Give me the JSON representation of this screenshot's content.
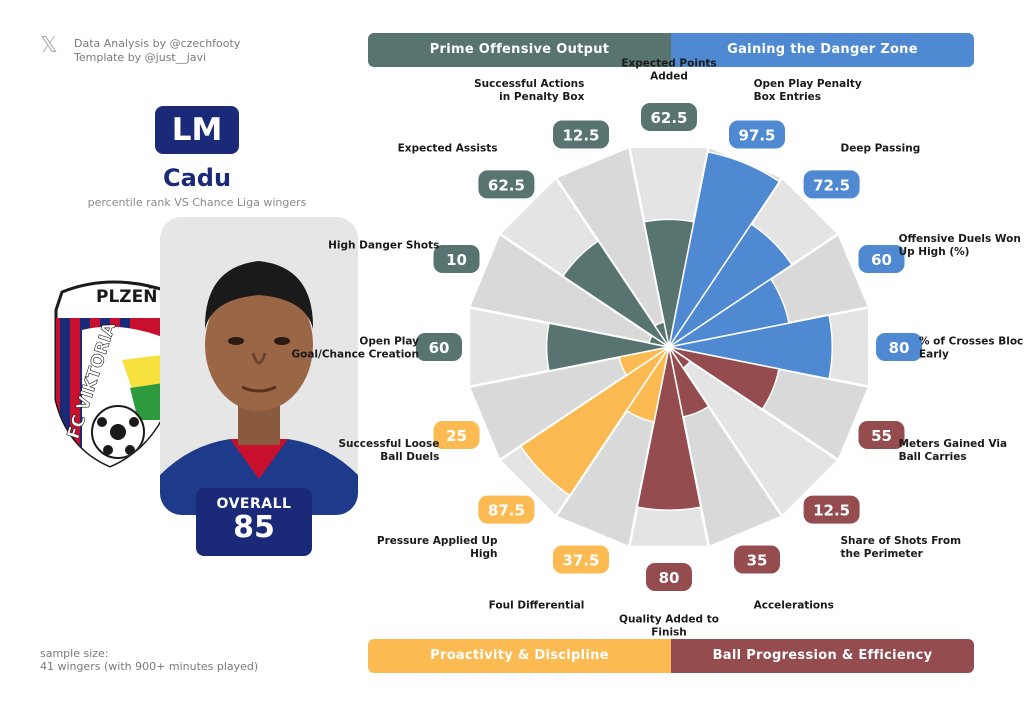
{
  "credits": {
    "line1": "Data Analysis by @czechfooty",
    "line2": "Template by @just__javi"
  },
  "player": {
    "position": "LM",
    "name": "Cadu",
    "subtitle": "percentile rank VS Chance Liga wingers",
    "overall_label": "OVERALL",
    "overall_value": "85"
  },
  "sample": {
    "line1": "sample size:",
    "line2": "41 wingers (with 900+ minutes played)"
  },
  "categories": {
    "top_left": "Prime Offensive Output",
    "top_right": "Gaining the Danger Zone",
    "bottom_left": "Proactivity & Discipline",
    "bottom_right": "Ball Progression & Efficiency"
  },
  "colors": {
    "prime": "#587470",
    "danger": "#4e89d2",
    "proactivity": "#fbbb52",
    "progression": "#944c4e",
    "navy": "#1b2a78"
  },
  "crest": {
    "top_text": "PLZEŇ",
    "side_text": "FC VIKTORIA"
  },
  "chart_data": {
    "type": "radar",
    "title": "Cadu",
    "range": [
      0,
      100
    ],
    "metrics": [
      {
        "label": "Expected Points Added",
        "value": 62.5,
        "group": "prime"
      },
      {
        "label": "Open Play Penalty Box Entries",
        "value": 97.5,
        "group": "danger"
      },
      {
        "label": "Deep Passing",
        "value": 72.5,
        "group": "danger"
      },
      {
        "label": "Offensive Duels Won Up High (%)",
        "value": 60,
        "group": "danger"
      },
      {
        "label": "% of Crosses Blocked Early",
        "value": 80,
        "group": "danger"
      },
      {
        "label": "Meters Gained Via Ball Carries",
        "value": 55,
        "group": "progression"
      },
      {
        "label": "Share of Shots From the Perimeter",
        "value": 12.5,
        "group": "progression"
      },
      {
        "label": "Accelerations",
        "value": 35,
        "group": "progression"
      },
      {
        "label": "Quality Added to Finish",
        "value": 80,
        "group": "progression"
      },
      {
        "label": "Foul Differential",
        "value": 37.5,
        "group": "proactivity"
      },
      {
        "label": "Pressure Applied Up High",
        "value": 87.5,
        "group": "proactivity"
      },
      {
        "label": "Successful Loose Ball Duels",
        "value": 25,
        "group": "proactivity"
      },
      {
        "label": "Open Play Goal/Chance Creation",
        "value": 60,
        "group": "prime"
      },
      {
        "label": "High Danger Shots",
        "value": 10,
        "group": "prime"
      },
      {
        "label": "Expected Assists",
        "value": 62.5,
        "group": "prime"
      },
      {
        "label": "Successful Actions in Penalty Box",
        "value": 12.5,
        "group": "prime"
      }
    ]
  }
}
